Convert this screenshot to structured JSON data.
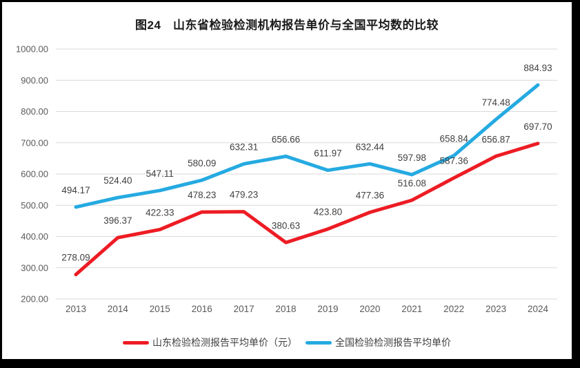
{
  "chart": {
    "title": "图24　山东省检验检测机构报告单价与全国平均数的比较"
  },
  "chart_data": {
    "type": "line",
    "categories": [
      "2013",
      "2014",
      "2015",
      "2016",
      "2017",
      "2018",
      "2019",
      "2020",
      "2021",
      "2022",
      "2023",
      "2024"
    ],
    "series": [
      {
        "name": "山东检验检测报告平均单价（元）",
        "color": "#ed1c24",
        "values": [
          278.09,
          396.37,
          422.33,
          478.23,
          479.23,
          380.63,
          423.8,
          477.36,
          516.08,
          587.36,
          656.87,
          697.7
        ]
      },
      {
        "name": "全国检验检测报告平均单价",
        "color": "#25aae1",
        "values": [
          494.17,
          524.4,
          547.11,
          580.09,
          632.31,
          656.66,
          611.97,
          632.44,
          597.98,
          658.84,
          774.48,
          884.93
        ]
      }
    ],
    "title": "图24　山东省检验检测机构报告单价与全国平均数的比较",
    "xlabel": "",
    "ylabel": "",
    "ylim": [
      200,
      1000
    ],
    "ytick_step": 100,
    "ytick_format_decimals": 2,
    "grid": true,
    "legend_position": "bottom",
    "value_labels": true,
    "colors": {
      "gridline": "#d9d9d9",
      "axis_text": "#595959",
      "data_label_text": "#404040",
      "title_text": "#1a1a1a",
      "frame_border": "#000000"
    }
  }
}
